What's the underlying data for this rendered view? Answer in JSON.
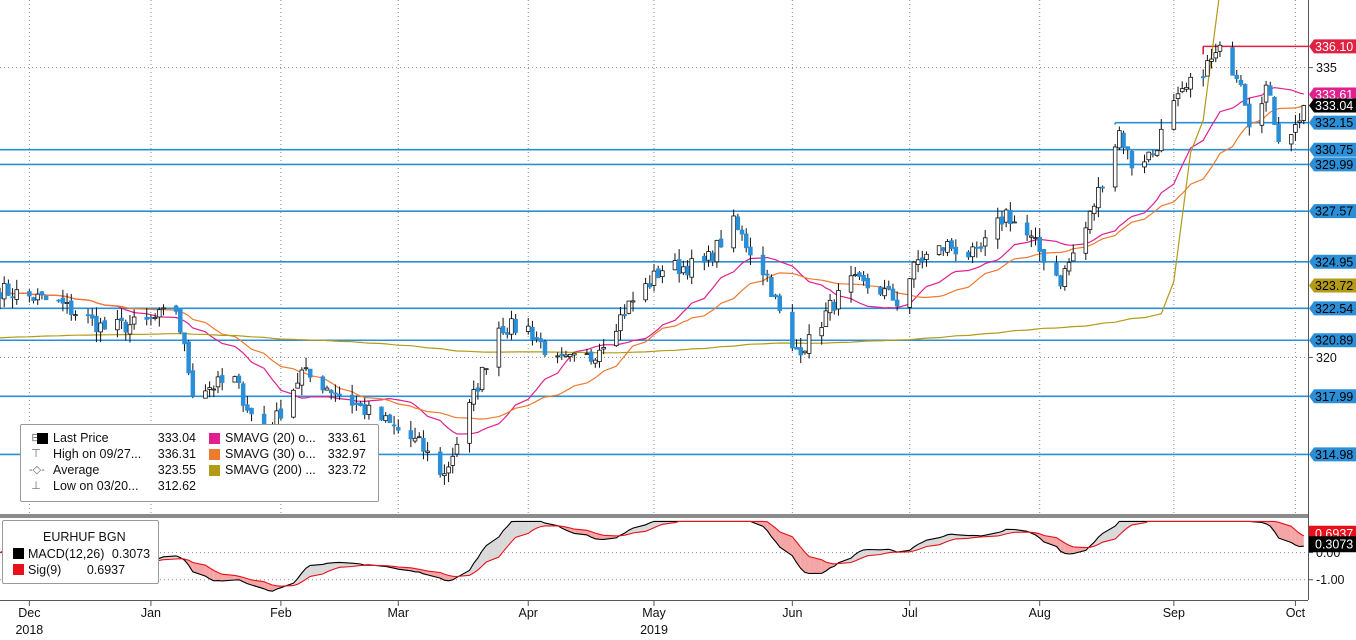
{
  "chart_data": [
    {
      "type": "candlestick",
      "instrument": "EURHUF BGN",
      "price_axis": {
        "ylim": [
          312.0,
          338.5
        ],
        "ticks": [
          {
            "value": 335,
            "label": "335"
          },
          {
            "value": 320,
            "label": "320"
          }
        ]
      },
      "time_axis": {
        "x_range": [
          "2018-11-26",
          "2019-10-04"
        ],
        "ticks": [
          {
            "date": "2018-12-03",
            "label": "Dec",
            "sub": "2018"
          },
          {
            "date": "2019-01-01",
            "label": "Jan"
          },
          {
            "date": "2019-02-01",
            "label": "Feb"
          },
          {
            "date": "2019-03-01",
            "label": "Mar"
          },
          {
            "date": "2019-04-01",
            "label": "Apr"
          },
          {
            "date": "2019-05-01",
            "label": "May",
            "sub": "2019"
          },
          {
            "date": "2019-06-03",
            "label": "Jun"
          },
          {
            "date": "2019-07-01",
            "label": "Jul"
          },
          {
            "date": "2019-08-01",
            "label": "Aug"
          },
          {
            "date": "2019-09-02",
            "label": "Sep"
          },
          {
            "date": "2019-10-01",
            "label": "Oct"
          }
        ]
      },
      "horizontal_levels": [
        {
          "value": 336.1,
          "label": "336.10",
          "color": "#e02040",
          "from": "2019-09-09",
          "to": "end"
        },
        {
          "value": 332.15,
          "label": "332.15",
          "color": "#2b8fd8",
          "from": "2019-08-19",
          "to": "end"
        },
        {
          "value": 330.75,
          "label": "330.75",
          "color": "#2b8fd8",
          "from": "start",
          "to": "end"
        },
        {
          "value": 329.99,
          "label": "329.99",
          "color": "#2b8fd8",
          "from": "start",
          "to": "end"
        },
        {
          "value": 327.57,
          "label": "327.57",
          "color": "#2b8fd8",
          "from": "start",
          "to": "end"
        },
        {
          "value": 324.95,
          "label": "324.95",
          "color": "#2b8fd8",
          "from": "start",
          "to": "end"
        },
        {
          "value": 322.54,
          "label": "322.54",
          "color": "#2b8fd8",
          "from": "start",
          "to": "end"
        },
        {
          "value": 320.89,
          "label": "320.89",
          "color": "#2b8fd8",
          "from": "start",
          "to": "end"
        },
        {
          "value": 317.99,
          "label": "317.99",
          "color": "#2b8fd8",
          "from": "start",
          "to": "end"
        },
        {
          "value": 314.98,
          "label": "314.98",
          "color": "#2b8fd8",
          "from": "start",
          "to": "end"
        }
      ],
      "price_tags": [
        {
          "value": 333.61,
          "label": "333.61",
          "color": "#e0208f"
        },
        {
          "value": 333.04,
          "label": "333.04",
          "color": "#000000"
        },
        {
          "value": 323.72,
          "label": "323.72",
          "color": "#b39b17"
        }
      ],
      "candle_series": {
        "name": "EURHUF",
        "up_color": "#ffffff",
        "down_color": "#2b8fd8",
        "anchors": [
          [
            "2018-11-26",
            323.5
          ],
          [
            "2018-12-10",
            322.8
          ],
          [
            "2018-12-21",
            321.5
          ],
          [
            "2018-12-31",
            321.8
          ],
          [
            "2019-01-07",
            322.5
          ],
          [
            "2019-01-11",
            318.3
          ],
          [
            "2019-01-21",
            318.8
          ],
          [
            "2019-01-28",
            315.7
          ],
          [
            "2019-02-06",
            319.2
          ],
          [
            "2019-02-12",
            318.5
          ],
          [
            "2019-02-20",
            317.4
          ],
          [
            "2019-02-25",
            316.8
          ],
          [
            "2019-03-06",
            315.5
          ],
          [
            "2019-03-12",
            313.9
          ],
          [
            "2019-03-15",
            315.6
          ],
          [
            "2019-03-25",
            321.6
          ],
          [
            "2019-04-01",
            321.5
          ],
          [
            "2019-04-08",
            319.7
          ],
          [
            "2019-04-16",
            320.0
          ],
          [
            "2019-04-25",
            322.7
          ],
          [
            "2019-05-03",
            324.6
          ],
          [
            "2019-05-13",
            324.8
          ],
          [
            "2019-05-20",
            326.9
          ],
          [
            "2019-05-28",
            324.2
          ],
          [
            "2019-06-03",
            320.3
          ],
          [
            "2019-06-07",
            320.8
          ],
          [
            "2019-06-12",
            322.6
          ],
          [
            "2019-06-17",
            323.9
          ],
          [
            "2019-06-24",
            323.5
          ],
          [
            "2019-06-28",
            322.9
          ],
          [
            "2019-07-03",
            325.0
          ],
          [
            "2019-07-10",
            325.8
          ],
          [
            "2019-07-17",
            325.2
          ],
          [
            "2019-07-24",
            327.5
          ],
          [
            "2019-07-31",
            325.8
          ],
          [
            "2019-08-02",
            325.2
          ],
          [
            "2019-08-06",
            324.0
          ],
          [
            "2019-08-12",
            326.7
          ],
          [
            "2019-08-20",
            331.7
          ],
          [
            "2019-08-23",
            330.0
          ],
          [
            "2019-08-28",
            330.6
          ],
          [
            "2019-09-02",
            333.0
          ],
          [
            "2019-09-09",
            334.9
          ],
          [
            "2019-09-13",
            335.8
          ],
          [
            "2019-09-18",
            334.5
          ],
          [
            "2019-09-20",
            332.3
          ],
          [
            "2019-09-24",
            334.0
          ],
          [
            "2019-09-27",
            331.5
          ],
          [
            "2019-10-01",
            331.9
          ],
          [
            "2019-10-03",
            333.04
          ]
        ]
      },
      "moving_averages": [
        {
          "name": "SMAVG (20)",
          "color": "#e0208f"
        },
        {
          "name": "SMAVG (30)",
          "color": "#ee7a30"
        },
        {
          "name": "SMAVG (200)",
          "color": "#b39b17"
        }
      ],
      "legend": {
        "rows": [
          {
            "glyph": "⊟",
            "name": "Last Price",
            "value": "333.04",
            "swatch": "#000000",
            "name2": "SMAVG (20)   o...",
            "value2": "333.61",
            "swatch2": "#e0208f"
          },
          {
            "glyph": "⊤",
            "name": "High on 09/27...",
            "value": "336.31",
            "name2": "SMAVG (30)   o...",
            "value2": "332.97",
            "swatch2": "#ee7a30"
          },
          {
            "glyph": "-◇-",
            "name": "Average",
            "value": "323.55",
            "name2": "SMAVG (200)   ...",
            "value2": "323.72",
            "swatch2": "#b39b17"
          },
          {
            "glyph": "⊥",
            "name": "Low on 03/20...",
            "value": "312.62"
          }
        ]
      }
    },
    {
      "type": "line",
      "title": "EURHUF BGN",
      "ylim": [
        -1.6,
        1.2
      ],
      "ticks": [
        {
          "value": 0.0,
          "label": "0.00"
        },
        {
          "value": -1.0,
          "label": "-1.00"
        }
      ],
      "series": [
        {
          "name": "MACD(12,26)",
          "value_label": "0.3073",
          "color": "#000000"
        },
        {
          "name": "Sig(9)",
          "value_label": "0.6937",
          "color": "#e8101a"
        }
      ],
      "price_tags": [
        {
          "value": 0.3073,
          "label": "0.3073",
          "color": "#000000"
        },
        {
          "value": 0.6937,
          "label": "0.6937",
          "color": "#e8101a"
        }
      ]
    }
  ]
}
